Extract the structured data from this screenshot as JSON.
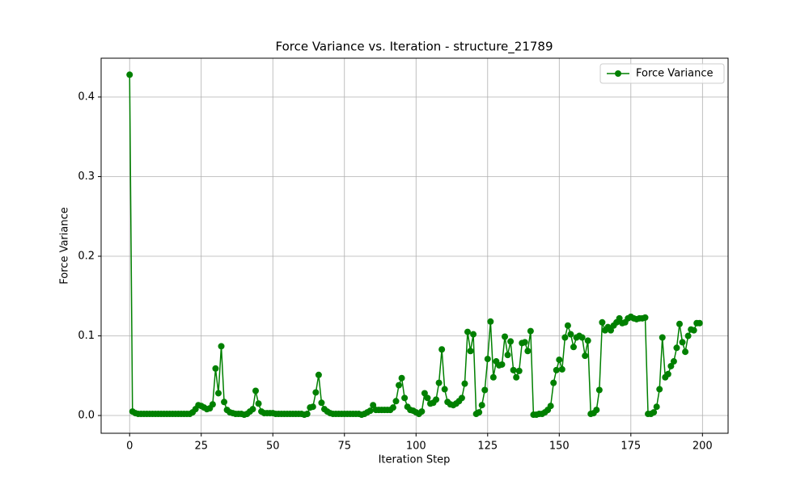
{
  "chart_data": {
    "type": "line",
    "title": "Force Variance vs. Iteration - structure_21789",
    "x_label": "Iteration Step",
    "y_label": "Force Variance",
    "x": [
      0,
      1,
      2,
      3,
      4,
      5,
      6,
      7,
      8,
      9,
      10,
      11,
      12,
      13,
      14,
      15,
      16,
      17,
      18,
      19,
      20,
      21,
      22,
      23,
      24,
      25,
      26,
      27,
      28,
      29,
      30,
      31,
      32,
      33,
      34,
      35,
      36,
      37,
      38,
      39,
      40,
      41,
      42,
      43,
      44,
      45,
      46,
      47,
      48,
      49,
      50,
      51,
      52,
      53,
      54,
      55,
      56,
      57,
      58,
      59,
      60,
      61,
      62,
      63,
      64,
      65,
      66,
      67,
      68,
      69,
      70,
      71,
      72,
      73,
      74,
      75,
      76,
      77,
      78,
      79,
      80,
      81,
      82,
      83,
      84,
      85,
      86,
      87,
      88,
      89,
      90,
      91,
      92,
      93,
      94,
      95,
      96,
      97,
      98,
      99,
      100,
      101,
      102,
      103,
      104,
      105,
      106,
      107,
      108,
      109,
      110,
      111,
      112,
      113,
      114,
      115,
      116,
      117,
      118,
      119,
      120,
      121,
      122,
      123,
      124,
      125,
      126,
      127,
      128,
      129,
      130,
      131,
      132,
      133,
      134,
      135,
      136,
      137,
      138,
      139,
      140,
      141,
      142,
      143,
      144,
      145,
      146,
      147,
      148,
      149,
      150,
      151,
      152,
      153,
      154,
      155,
      156,
      157,
      158,
      159,
      160,
      161,
      162,
      163,
      164,
      165,
      166,
      167,
      168,
      169,
      170,
      171,
      172,
      173,
      174,
      175,
      176,
      177,
      178,
      179,
      180,
      181,
      182,
      183,
      184,
      185,
      186,
      187,
      188,
      189,
      190,
      191,
      192,
      193,
      194,
      195,
      196,
      197,
      198,
      199
    ],
    "series": [
      {
        "name": "Force Variance",
        "color": "#008000",
        "values": [
          0.428,
          0.005,
          0.003,
          0.002,
          0.002,
          0.002,
          0.002,
          0.002,
          0.002,
          0.002,
          0.002,
          0.002,
          0.002,
          0.002,
          0.002,
          0.002,
          0.002,
          0.002,
          0.002,
          0.002,
          0.002,
          0.002,
          0.004,
          0.008,
          0.013,
          0.012,
          0.01,
          0.008,
          0.009,
          0.014,
          0.059,
          0.028,
          0.087,
          0.017,
          0.007,
          0.004,
          0.003,
          0.002,
          0.002,
          0.002,
          0.001,
          0.002,
          0.005,
          0.008,
          0.031,
          0.015,
          0.005,
          0.003,
          0.003,
          0.003,
          0.003,
          0.002,
          0.002,
          0.002,
          0.002,
          0.002,
          0.002,
          0.002,
          0.002,
          0.002,
          0.002,
          0.001,
          0.002,
          0.01,
          0.011,
          0.029,
          0.051,
          0.016,
          0.008,
          0.005,
          0.003,
          0.002,
          0.002,
          0.002,
          0.002,
          0.002,
          0.002,
          0.002,
          0.002,
          0.002,
          0.002,
          0.001,
          0.002,
          0.004,
          0.006,
          0.013,
          0.007,
          0.007,
          0.007,
          0.007,
          0.007,
          0.007,
          0.01,
          0.018,
          0.038,
          0.047,
          0.022,
          0.011,
          0.007,
          0.006,
          0.004,
          0.002,
          0.005,
          0.028,
          0.022,
          0.015,
          0.016,
          0.02,
          0.041,
          0.083,
          0.033,
          0.017,
          0.014,
          0.013,
          0.015,
          0.018,
          0.022,
          0.04,
          0.105,
          0.081,
          0.102,
          0.002,
          0.004,
          0.013,
          0.032,
          0.071,
          0.118,
          0.048,
          0.068,
          0.063,
          0.064,
          0.099,
          0.076,
          0.093,
          0.057,
          0.048,
          0.056,
          0.091,
          0.092,
          0.081,
          0.106,
          0.001,
          0.001,
          0.002,
          0.002,
          0.004,
          0.007,
          0.012,
          0.041,
          0.057,
          0.07,
          0.058,
          0.098,
          0.113,
          0.102,
          0.086,
          0.098,
          0.1,
          0.098,
          0.075,
          0.094,
          0.002,
          0.003,
          0.007,
          0.032,
          0.117,
          0.107,
          0.111,
          0.107,
          0.113,
          0.117,
          0.122,
          0.116,
          0.117,
          0.122,
          0.124,
          0.122,
          0.121,
          0.122,
          0.122,
          0.123,
          0.002,
          0.002,
          0.004,
          0.011,
          0.033,
          0.098,
          0.048,
          0.052,
          0.062,
          0.068,
          0.085,
          0.115,
          0.092,
          0.08,
          0.1,
          0.108,
          0.107,
          0.116,
          0.116
        ]
      }
    ],
    "xlim": [
      -9.95,
      208.95
    ],
    "xticks": [
      0,
      25,
      50,
      75,
      100,
      125,
      150,
      175,
      200
    ],
    "ylim": [
      -0.0223,
      0.4487
    ],
    "yticks": [
      {
        "value": 0,
        "label": "0.0"
      },
      0.1,
      0.2,
      0.3,
      0.4
    ],
    "grid": true,
    "legend": "upper right"
  }
}
